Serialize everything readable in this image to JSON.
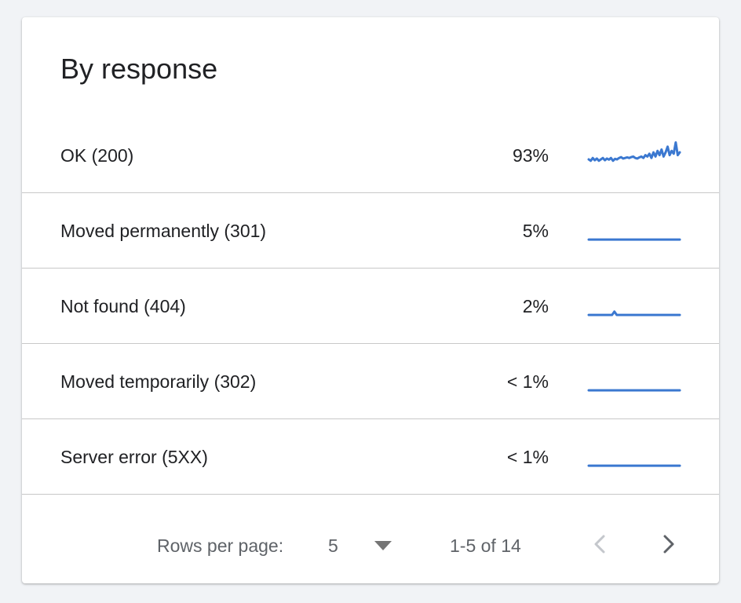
{
  "card": {
    "title": "By response"
  },
  "rows": [
    {
      "label": "OK (200)",
      "percent": "93%",
      "trend": [
        0.25,
        0.2,
        0.3,
        0.22,
        0.28,
        0.2,
        0.25,
        0.3,
        0.22,
        0.28,
        0.24,
        0.3,
        0.2,
        0.27,
        0.25,
        0.3,
        0.33,
        0.28,
        0.3,
        0.32,
        0.3,
        0.33,
        0.35,
        0.3,
        0.28,
        0.32,
        0.35,
        0.3,
        0.4,
        0.35,
        0.45,
        0.3,
        0.5,
        0.35,
        0.55,
        0.4,
        0.6,
        0.35,
        0.5,
        0.7,
        0.4,
        0.55,
        0.45,
        0.85,
        0.4,
        0.5
      ]
    },
    {
      "label": "Moved permanently (301)",
      "percent": "5%",
      "trend": [
        0.08,
        0.08,
        0.08,
        0.08,
        0.08,
        0.08,
        0.08,
        0.08,
        0.08,
        0.08,
        0.08,
        0.08
      ]
    },
    {
      "label": "Not found (404)",
      "percent": "2%",
      "trend": [
        0.08,
        0.08,
        0.08,
        0.08,
        0.08,
        0.08,
        0.08,
        0.08,
        0.08,
        0.08,
        0.08,
        0.2,
        0.08,
        0.08,
        0.08,
        0.08,
        0.08,
        0.08,
        0.08,
        0.08,
        0.08,
        0.08,
        0.08,
        0.08,
        0.08,
        0.08,
        0.08,
        0.08,
        0.08,
        0.08,
        0.08,
        0.08,
        0.08,
        0.08,
        0.08,
        0.08,
        0.08,
        0.08,
        0.08,
        0.08
      ]
    },
    {
      "label": "Moved temporarily (302)",
      "percent": "< 1%",
      "trend": [
        0.08,
        0.08,
        0.08,
        0.08,
        0.08,
        0.08,
        0.08,
        0.08,
        0.08,
        0.08,
        0.08,
        0.08
      ]
    },
    {
      "label": "Server error (5XX)",
      "percent": "< 1%",
      "trend": [
        0.08,
        0.08,
        0.08,
        0.08,
        0.08,
        0.08,
        0.08,
        0.08,
        0.08,
        0.08,
        0.08,
        0.08
      ]
    }
  ],
  "pagination": {
    "rows_per_page_label": "Rows per page:",
    "rows_per_page_value": "5",
    "range_text": "1-5 of 14"
  },
  "colors": {
    "sparkline": "#3b78d0",
    "text": "#202124",
    "muted": "#5f6368",
    "disabled": "#c4c7cc"
  },
  "icons": {
    "dropdown": "caret-down-icon",
    "prev": "chevron-left-icon",
    "next": "chevron-right-icon"
  }
}
